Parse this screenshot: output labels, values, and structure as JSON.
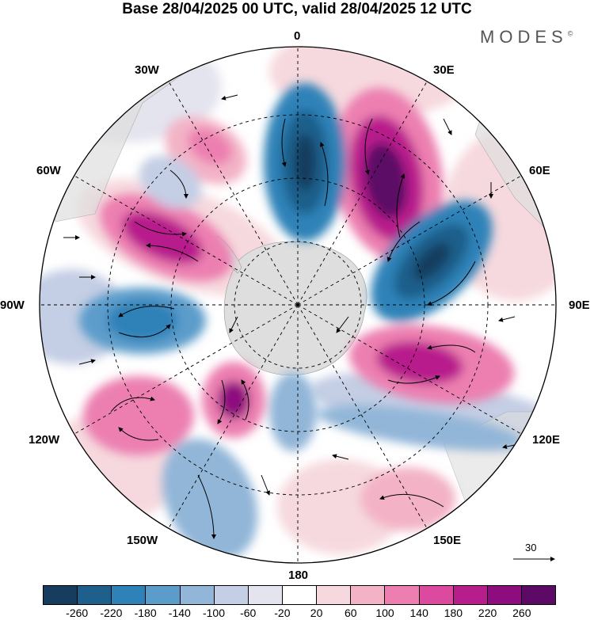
{
  "title": "Base 28/04/2025 00 UTC, valid 28/04/2025 12 UTC",
  "brand": "MODES",
  "brand_mark": "©",
  "longitude_labels": {
    "lon_0": "0",
    "lon_30e": "30E",
    "lon_60e": "60E",
    "lon_90e": "90E",
    "lon_120e": "120E",
    "lon_150e": "150E",
    "lon_180": "180",
    "lon_150w": "150W",
    "lon_120w": "120W",
    "lon_90w": "90W",
    "lon_60w": "60W",
    "lon_30w": "30W"
  },
  "reference_vector": {
    "label": "30"
  },
  "colorbar": {
    "labels": [
      "-260",
      "-220",
      "-180",
      "-140",
      "-100",
      "-60",
      "-20",
      "20",
      "60",
      "100",
      "140",
      "180",
      "220",
      "260"
    ],
    "colors": [
      "#163d5e",
      "#1f5f8b",
      "#2f82b8",
      "#5c9ccb",
      "#92b6d8",
      "#c4cee4",
      "#e4e4ef",
      "#ffffff",
      "#f6d9de",
      "#f3b2c6",
      "#ec7fb0",
      "#db4a9e",
      "#b81d8c",
      "#8e0d7e",
      "#5c0a66"
    ]
  },
  "colors": {
    "land": "#dedede",
    "grid": "#000000",
    "vector": "#000000"
  }
}
